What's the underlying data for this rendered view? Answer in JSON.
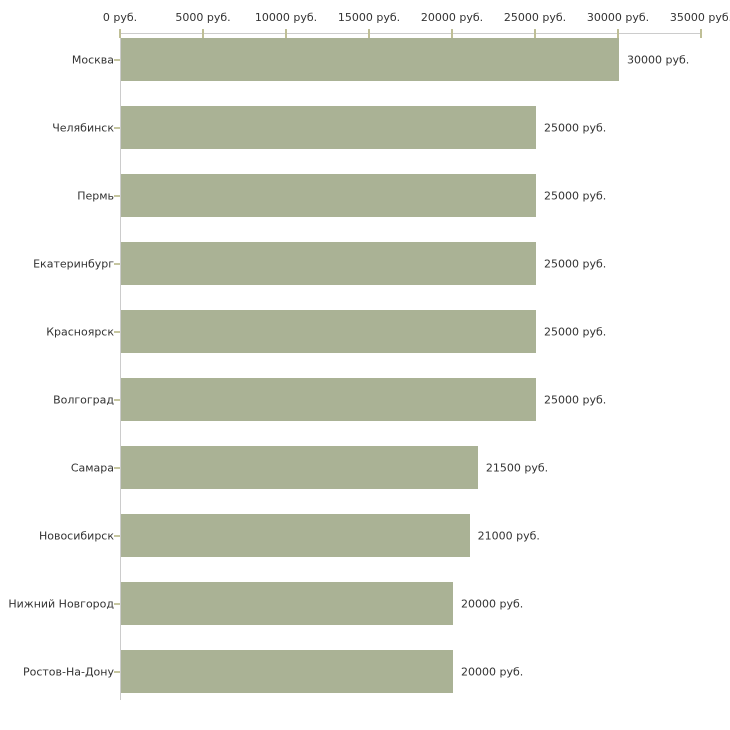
{
  "chart_data": {
    "type": "bar",
    "orientation": "horizontal",
    "title": "",
    "xlabel": "",
    "ylabel": "",
    "unit": "руб.",
    "grid": false,
    "legend_position": "none",
    "xlim": [
      0,
      35000
    ],
    "x_tick_values": [
      0,
      5000,
      10000,
      15000,
      20000,
      25000,
      30000,
      35000
    ],
    "x_tick_labels": [
      "0 руб.",
      "5000 руб.",
      "10000 руб.",
      "15000 руб.",
      "20000 руб.",
      "25000 руб.",
      "30000 руб.",
      "35000 руб."
    ],
    "categories": [
      "Москва",
      "Челябинск",
      "Пермь",
      "Екатеринбург",
      "Красноярск",
      "Волгоград",
      "Самара",
      "Новосибирск",
      "Нижний Новгород",
      "Ростов-На-Дону"
    ],
    "values": [
      30000,
      25000,
      25000,
      25000,
      25000,
      25000,
      21500,
      21000,
      20000,
      20000
    ],
    "bar_value_labels": [
      "30000 руб.",
      "25000 руб.",
      "25000 руб.",
      "25000 руб.",
      "25000 руб.",
      "25000 руб.",
      "21500 руб.",
      "21000 руб.",
      "20000 руб.",
      "20000 руб."
    ],
    "colors": {
      "bar": "#aab295",
      "axis_line": "#cccccc",
      "axis_tick": "#bfbf96",
      "category_tick": "#c6c6a0",
      "text": "#333333",
      "background": "#ffffff"
    }
  }
}
